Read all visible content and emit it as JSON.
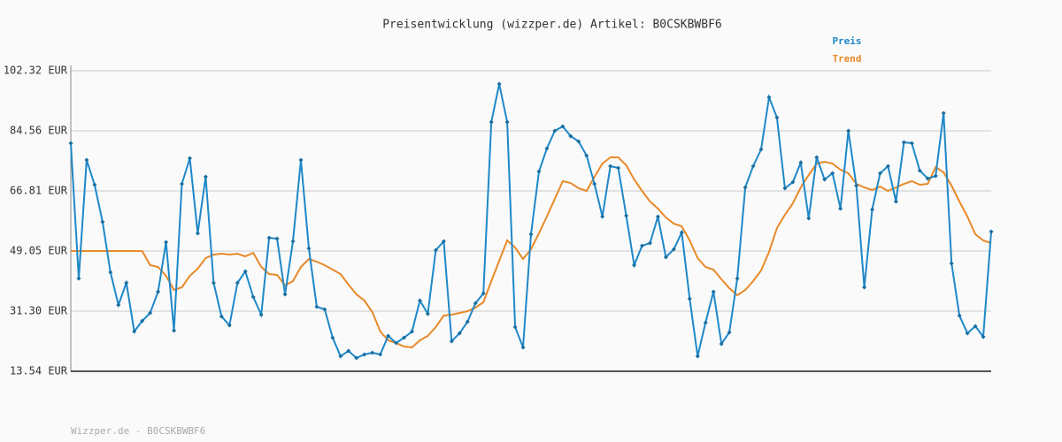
{
  "chart_data": {
    "type": "line",
    "title": "Preisentwicklung (wizzper.de) Artikel: B0CSKBWBF6",
    "footer": "Wizzper.de - B0CSKBWBF6",
    "ylim": [
      13.54,
      102.32
    ],
    "yticks": [
      {
        "value": 13.54,
        "label": "13.54 EUR"
      },
      {
        "value": 31.3,
        "label": "31.30 EUR"
      },
      {
        "value": 49.05,
        "label": "49.05 EUR"
      },
      {
        "value": 66.81,
        "label": "66.81 EUR"
      },
      {
        "value": 84.56,
        "label": "84.56 EUR"
      },
      {
        "value": 102.32,
        "label": "102.32 EUR"
      }
    ],
    "grid": true,
    "series": [
      {
        "name": "Preis",
        "color": "#1e88c8",
        "markers": true,
        "values": [
          80.91,
          40.96,
          75.95,
          68.64,
          57.67,
          42.79,
          33.13,
          39.66,
          25.3,
          28.43,
          30.78,
          37.05,
          51.67,
          25.56,
          68.9,
          76.47,
          54.28,
          70.99,
          39.66,
          29.73,
          27.12,
          39.66,
          43.05,
          35.48,
          30.26,
          52.97,
          52.71,
          36.26,
          51.93,
          75.95,
          49.84,
          32.61,
          31.82,
          23.47,
          17.99,
          19.55,
          17.46,
          18.51,
          19.03,
          18.51,
          23.99,
          21.9,
          23.47,
          25.3,
          34.43,
          30.52,
          49.32,
          51.93,
          22.42,
          24.77,
          28.17,
          33.65,
          36.52,
          87.18,
          98.4,
          87.18,
          26.6,
          20.59,
          54.02,
          72.56,
          79.34,
          84.56,
          85.87,
          83.0,
          81.43,
          77.25,
          68.9,
          59.24,
          74.12,
          73.6,
          59.5,
          44.88,
          50.62,
          51.41,
          59.24,
          47.23,
          49.58,
          54.54,
          34.96,
          17.99,
          27.91,
          37.05,
          21.64,
          25.04,
          40.96,
          67.85,
          74.12,
          79.08,
          94.49,
          88.48,
          67.59,
          69.42,
          75.17,
          58.72,
          76.73,
          70.21,
          72.03,
          61.59,
          84.56,
          68.38,
          38.35,
          61.33,
          72.03,
          74.12,
          63.68,
          81.17,
          80.91,
          72.82,
          70.47,
          71.25,
          89.79,
          45.4,
          29.99,
          24.77,
          26.86,
          23.73,
          54.8
        ]
      },
      {
        "name": "Trend",
        "color": "#e8892a",
        "markers": false,
        "values": [
          49.05,
          49.05,
          49.05,
          49.05,
          49.05,
          49.05,
          49.05,
          49.05,
          49.05,
          49.05,
          44.88,
          44.36,
          41.75,
          37.57,
          38.35,
          41.75,
          43.84,
          46.97,
          48.01,
          48.27,
          48.01,
          48.27,
          47.49,
          48.53,
          44.36,
          42.27,
          42.01,
          38.87,
          40.18,
          44.36,
          46.71,
          45.92,
          44.88,
          43.57,
          42.27,
          39.13,
          36.26,
          34.43,
          31.04,
          25.3,
          22.68,
          21.9,
          20.86,
          20.59,
          22.68,
          23.99,
          26.6,
          29.99,
          30.26,
          30.78,
          31.3,
          32.34,
          33.91,
          40.18,
          46.19,
          52.19,
          50.1,
          46.71,
          49.58,
          54.28,
          59.24,
          64.46,
          69.68,
          69.16,
          67.59,
          66.81,
          70.99,
          74.91,
          76.73,
          76.73,
          74.39,
          70.21,
          66.81,
          63.68,
          61.59,
          58.98,
          57.15,
          56.37,
          52.19,
          46.97,
          44.36,
          43.57,
          40.7,
          38.09,
          36.0,
          37.57,
          40.18,
          43.32,
          48.8,
          55.85,
          59.76,
          63.16,
          67.85,
          71.51,
          74.91,
          75.43,
          74.91,
          73.08,
          72.03,
          68.9,
          67.85,
          67.07,
          68.12,
          66.81,
          67.85,
          68.9,
          69.68,
          68.64,
          68.9,
          73.86,
          72.3,
          68.38,
          63.68,
          59.24,
          54.02,
          52.19,
          51.41
        ]
      }
    ]
  }
}
